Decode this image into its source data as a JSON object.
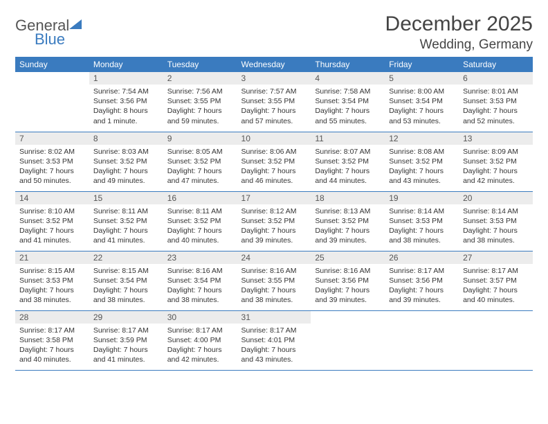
{
  "logo": {
    "general": "General",
    "blue": "Blue"
  },
  "title": "December 2025",
  "location": "Wedding, Germany",
  "colors": {
    "header_bg": "#3a7bbf",
    "header_fg": "#ffffff",
    "daynum_bg": "#ececec",
    "row_border": "#3a7bbf",
    "text": "#333333"
  },
  "weekdays": [
    "Sunday",
    "Monday",
    "Tuesday",
    "Wednesday",
    "Thursday",
    "Friday",
    "Saturday"
  ],
  "weeks": [
    [
      null,
      {
        "n": "1",
        "sr": "7:54 AM",
        "ss": "3:56 PM",
        "dl": "8 hours and 1 minute."
      },
      {
        "n": "2",
        "sr": "7:56 AM",
        "ss": "3:55 PM",
        "dl": "7 hours and 59 minutes."
      },
      {
        "n": "3",
        "sr": "7:57 AM",
        "ss": "3:55 PM",
        "dl": "7 hours and 57 minutes."
      },
      {
        "n": "4",
        "sr": "7:58 AM",
        "ss": "3:54 PM",
        "dl": "7 hours and 55 minutes."
      },
      {
        "n": "5",
        "sr": "8:00 AM",
        "ss": "3:54 PM",
        "dl": "7 hours and 53 minutes."
      },
      {
        "n": "6",
        "sr": "8:01 AM",
        "ss": "3:53 PM",
        "dl": "7 hours and 52 minutes."
      }
    ],
    [
      {
        "n": "7",
        "sr": "8:02 AM",
        "ss": "3:53 PM",
        "dl": "7 hours and 50 minutes."
      },
      {
        "n": "8",
        "sr": "8:03 AM",
        "ss": "3:52 PM",
        "dl": "7 hours and 49 minutes."
      },
      {
        "n": "9",
        "sr": "8:05 AM",
        "ss": "3:52 PM",
        "dl": "7 hours and 47 minutes."
      },
      {
        "n": "10",
        "sr": "8:06 AM",
        "ss": "3:52 PM",
        "dl": "7 hours and 46 minutes."
      },
      {
        "n": "11",
        "sr": "8:07 AM",
        "ss": "3:52 PM",
        "dl": "7 hours and 44 minutes."
      },
      {
        "n": "12",
        "sr": "8:08 AM",
        "ss": "3:52 PM",
        "dl": "7 hours and 43 minutes."
      },
      {
        "n": "13",
        "sr": "8:09 AM",
        "ss": "3:52 PM",
        "dl": "7 hours and 42 minutes."
      }
    ],
    [
      {
        "n": "14",
        "sr": "8:10 AM",
        "ss": "3:52 PM",
        "dl": "7 hours and 41 minutes."
      },
      {
        "n": "15",
        "sr": "8:11 AM",
        "ss": "3:52 PM",
        "dl": "7 hours and 41 minutes."
      },
      {
        "n": "16",
        "sr": "8:11 AM",
        "ss": "3:52 PM",
        "dl": "7 hours and 40 minutes."
      },
      {
        "n": "17",
        "sr": "8:12 AM",
        "ss": "3:52 PM",
        "dl": "7 hours and 39 minutes."
      },
      {
        "n": "18",
        "sr": "8:13 AM",
        "ss": "3:52 PM",
        "dl": "7 hours and 39 minutes."
      },
      {
        "n": "19",
        "sr": "8:14 AM",
        "ss": "3:53 PM",
        "dl": "7 hours and 38 minutes."
      },
      {
        "n": "20",
        "sr": "8:14 AM",
        "ss": "3:53 PM",
        "dl": "7 hours and 38 minutes."
      }
    ],
    [
      {
        "n": "21",
        "sr": "8:15 AM",
        "ss": "3:53 PM",
        "dl": "7 hours and 38 minutes."
      },
      {
        "n": "22",
        "sr": "8:15 AM",
        "ss": "3:54 PM",
        "dl": "7 hours and 38 minutes."
      },
      {
        "n": "23",
        "sr": "8:16 AM",
        "ss": "3:54 PM",
        "dl": "7 hours and 38 minutes."
      },
      {
        "n": "24",
        "sr": "8:16 AM",
        "ss": "3:55 PM",
        "dl": "7 hours and 38 minutes."
      },
      {
        "n": "25",
        "sr": "8:16 AM",
        "ss": "3:56 PM",
        "dl": "7 hours and 39 minutes."
      },
      {
        "n": "26",
        "sr": "8:17 AM",
        "ss": "3:56 PM",
        "dl": "7 hours and 39 minutes."
      },
      {
        "n": "27",
        "sr": "8:17 AM",
        "ss": "3:57 PM",
        "dl": "7 hours and 40 minutes."
      }
    ],
    [
      {
        "n": "28",
        "sr": "8:17 AM",
        "ss": "3:58 PM",
        "dl": "7 hours and 40 minutes."
      },
      {
        "n": "29",
        "sr": "8:17 AM",
        "ss": "3:59 PM",
        "dl": "7 hours and 41 minutes."
      },
      {
        "n": "30",
        "sr": "8:17 AM",
        "ss": "4:00 PM",
        "dl": "7 hours and 42 minutes."
      },
      {
        "n": "31",
        "sr": "8:17 AM",
        "ss": "4:01 PM",
        "dl": "7 hours and 43 minutes."
      },
      null,
      null,
      null
    ]
  ],
  "labels": {
    "sunrise": "Sunrise: ",
    "sunset": "Sunset: ",
    "daylight": "Daylight: "
  }
}
